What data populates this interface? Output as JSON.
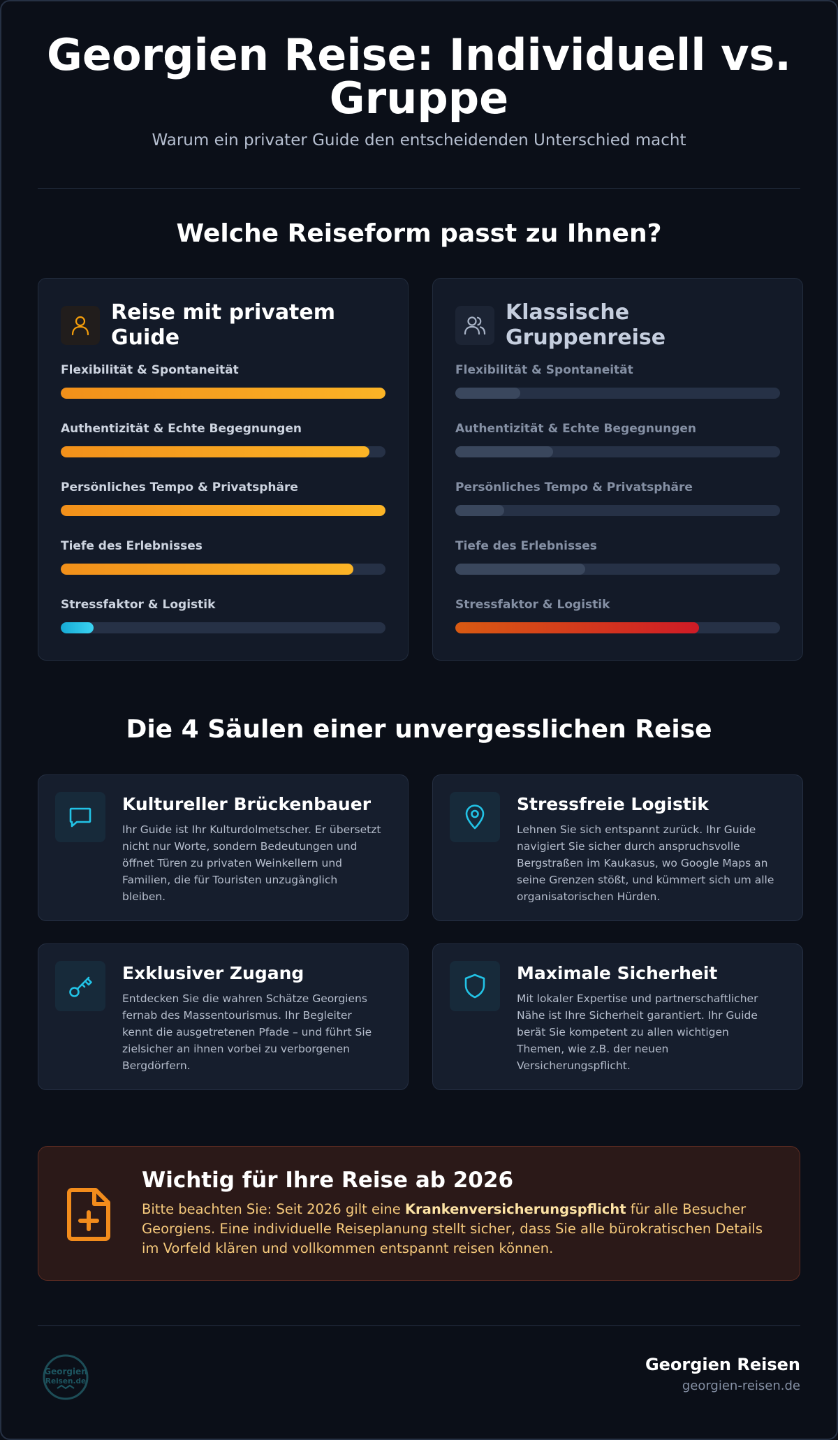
{
  "header": {
    "title_line1": "Georgien Reise: Individuell vs.",
    "title_line2": "Gruppe",
    "subtitle": "Warum ein privater Guide den entscheidenden Unterschied macht"
  },
  "comparison": {
    "heading": "Welche Reiseform passt zu Ihnen?",
    "private_guide": {
      "title_line1": "Reise mit privatem",
      "title_line2": "Guide",
      "icon": "user-icon",
      "metrics": [
        {
          "label": "Flexibilität & Spontaneität",
          "value": 1.0,
          "color": "orange"
        },
        {
          "label": "Authentizität & Echte Begegnungen",
          "value": 0.95,
          "color": "orange"
        },
        {
          "label": "Persönliches Tempo & Privatsphäre",
          "value": 1.0,
          "color": "orange"
        },
        {
          "label": "Tiefe des Erlebnisses",
          "value": 0.9,
          "color": "orange"
        },
        {
          "label": "Stressfaktor & Logistik",
          "value": 0.1,
          "color": "cyan"
        }
      ]
    },
    "group_tour": {
      "title_line1": "Klassische",
      "title_line2": "Gruppenreise",
      "icon": "users-icon",
      "metrics": [
        {
          "label": "Flexibilität & Spontaneität",
          "value": 0.2,
          "color": "slate"
        },
        {
          "label": "Authentizität & Echte Begegnungen",
          "value": 0.3,
          "color": "slate"
        },
        {
          "label": "Persönliches Tempo & Privatsphäre",
          "value": 0.15,
          "color": "slate"
        },
        {
          "label": "Tiefe des Erlebnisses",
          "value": 0.4,
          "color": "slate"
        },
        {
          "label": "Stressfaktor & Logistik",
          "value": 0.75,
          "color": "red"
        }
      ]
    }
  },
  "pillars": {
    "heading": "Die 4 Säulen einer unvergesslichen Reise",
    "items": [
      {
        "icon": "chat-bubble-icon",
        "title": "Kultureller Brückenbauer",
        "lines": [
          "Ihr Guide ist Ihr Kulturdolmetscher. Er übersetzt",
          "nicht nur Worte, sondern Bedeutungen und",
          "öffnet Türen zu privaten Weinkellern und",
          "Familien, die für Touristen unzugänglich",
          "bleiben."
        ]
      },
      {
        "icon": "map-pin-icon",
        "title": "Stressfreie Logistik",
        "lines": [
          "Lehnen Sie sich entspannt zurück. Ihr Guide",
          "navigiert Sie sicher durch anspruchsvolle",
          "Bergstraßen im Kaukasus, wo Google Maps an",
          "seine Grenzen stößt, und kümmert sich um alle",
          "organisatorischen Hürden."
        ]
      },
      {
        "icon": "key-icon",
        "title": "Exklusiver Zugang",
        "lines": [
          "Entdecken Sie die wahren Schätze Georgiens",
          "fernab des Massentourismus. Ihr Begleiter",
          "kennt die ausgetretenen Pfade – und führt Sie",
          "zielsicher an ihnen vorbei zu verborgenen",
          "Bergdörfern."
        ]
      },
      {
        "icon": "shield-icon",
        "title": "Maximale Sicherheit",
        "lines": [
          "Mit lokaler Expertise und partnerschaftlicher",
          "Nähe ist Ihre Sicherheit garantiert. Ihr Guide",
          "berät Sie kompetent zu allen wichtigen",
          "Themen, wie z.B. der neuen",
          "Versicherungspflicht."
        ]
      }
    ]
  },
  "notice": {
    "icon": "document-plus-icon",
    "title": "Wichtig für Ihre Reise ab 2026",
    "line1_pre": "Bitte beachten Sie: Seit 2026 gilt eine ",
    "line1_bold": "Krankenversicherungspflicht",
    "line1_post": " für alle Besucher",
    "line2": "Georgiens. Eine individuelle Reiseplanung stellt sicher, dass Sie alle bürokratischen Details",
    "line3": "im Vorfeld klären und vollkommen entspannt reisen können."
  },
  "footer": {
    "logo_text_line1": "Georgien",
    "logo_text_line2": "Reisen.de",
    "brand_name": "Georgien Reisen",
    "brand_url": "georgien-reisen.de"
  },
  "colors": {
    "accent_orange": "#f59e0b",
    "accent_cyan": "#22c3e6",
    "accent_red": "#cf1b26",
    "background": "#0b0f18"
  }
}
